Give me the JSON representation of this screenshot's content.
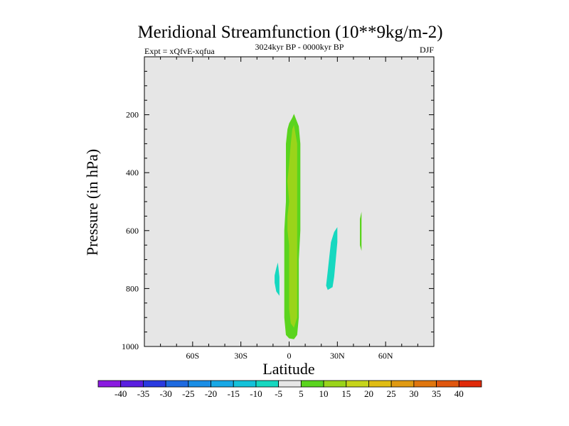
{
  "chart_data": {
    "type": "contour",
    "title": "Meridional Streamfunction (10**9kg/m-2)",
    "subtitle_left": "Expt = xQfvE-xqfua",
    "subtitle_center": "3024kyr BP - 0000kyr BP",
    "subtitle_right": "DJF",
    "xlabel": "Latitude",
    "ylabel": "Pressure (in hPa)",
    "xlim": [
      -90,
      90
    ],
    "ylim": [
      1000,
      0
    ],
    "x_ticks": [
      {
        "value": -60,
        "label": "60S"
      },
      {
        "value": -30,
        "label": "30S"
      },
      {
        "value": 0,
        "label": "0"
      },
      {
        "value": 30,
        "label": "30N"
      },
      {
        "value": 60,
        "label": "60N"
      }
    ],
    "y_ticks": [
      {
        "value": 200,
        "label": "200"
      },
      {
        "value": 400,
        "label": "400"
      },
      {
        "value": 600,
        "label": "600"
      },
      {
        "value": 800,
        "label": "800"
      },
      {
        "value": 1000,
        "label": "1000"
      }
    ],
    "background_color": "#e6e6e6",
    "contour_levels": [
      -40,
      -35,
      -30,
      -25,
      -20,
      -15,
      -10,
      -5,
      5,
      10,
      15,
      20,
      25,
      30,
      35,
      40
    ],
    "colorbar_colors": [
      "#8a1ae0",
      "#5a1ee0",
      "#2a3ae0",
      "#1e6ae0",
      "#1a8ee6",
      "#18a8e6",
      "#14c2da",
      "#16d8c0",
      "#e6e6e6",
      "#5ad41e",
      "#9ad41a",
      "#c6d41a",
      "#e0bc12",
      "#e09a12",
      "#e0760e",
      "#e0560e",
      "#e02a0a"
    ],
    "regions": [
      {
        "name": "equatorial-band-outer",
        "level": "5 to 10",
        "color": "#5ad41e",
        "polygon": [
          [
            3,
            197
          ],
          [
            6,
            240
          ],
          [
            7,
            300
          ],
          [
            7,
            400
          ],
          [
            7,
            500
          ],
          [
            7,
            600
          ],
          [
            6,
            700
          ],
          [
            6,
            800
          ],
          [
            6,
            900
          ],
          [
            5,
            960
          ],
          [
            3,
            975
          ],
          [
            0,
            972
          ],
          [
            -2,
            960
          ],
          [
            -3,
            900
          ],
          [
            -3,
            800
          ],
          [
            -3,
            700
          ],
          [
            -3,
            600
          ],
          [
            -2,
            500
          ],
          [
            -2,
            400
          ],
          [
            -2,
            300
          ],
          [
            -1,
            250
          ],
          [
            0,
            230
          ],
          [
            2,
            210
          ]
        ]
      },
      {
        "name": "equatorial-band-inner",
        "level": "10 to 15",
        "color": "#9ad41a",
        "polygon": [
          [
            3,
            235
          ],
          [
            5,
            300
          ],
          [
            5,
            400
          ],
          [
            5,
            500
          ],
          [
            5,
            600
          ],
          [
            5,
            700
          ],
          [
            5,
            800
          ],
          [
            5,
            900
          ],
          [
            3,
            935
          ],
          [
            1,
            920
          ],
          [
            0,
            870
          ],
          [
            0,
            750
          ],
          [
            0,
            650
          ],
          [
            -1,
            600
          ],
          [
            -1,
            550
          ],
          [
            0,
            500
          ],
          [
            -1,
            430
          ],
          [
            0,
            370
          ],
          [
            1,
            300
          ],
          [
            2,
            250
          ]
        ]
      },
      {
        "name": "south-tropics-patch",
        "level": "-10 to -5",
        "color": "#16d8c0",
        "polygon": [
          [
            -7,
            710
          ],
          [
            -6,
            760
          ],
          [
            -6,
            800
          ],
          [
            -6,
            825
          ],
          [
            -8,
            810
          ],
          [
            -9,
            780
          ],
          [
            -9,
            755
          ],
          [
            -8,
            730
          ]
        ]
      },
      {
        "name": "north-tropics-patch",
        "level": "-10 to -5",
        "color": "#16d8c0",
        "polygon": [
          [
            30,
            588
          ],
          [
            30,
            640
          ],
          [
            29,
            700
          ],
          [
            28,
            760
          ],
          [
            27,
            795
          ],
          [
            24,
            805
          ],
          [
            23,
            790
          ],
          [
            24,
            740
          ],
          [
            25,
            690
          ],
          [
            26,
            640
          ],
          [
            28,
            605
          ]
        ]
      },
      {
        "name": "north-midlatitude-patch",
        "level": "5 to 10",
        "color": "#5ad41e",
        "polygon": [
          [
            45,
            535
          ],
          [
            45,
            580
          ],
          [
            45,
            630
          ],
          [
            45,
            670
          ],
          [
            44,
            650
          ],
          [
            44,
            600
          ],
          [
            44,
            560
          ]
        ]
      }
    ]
  }
}
